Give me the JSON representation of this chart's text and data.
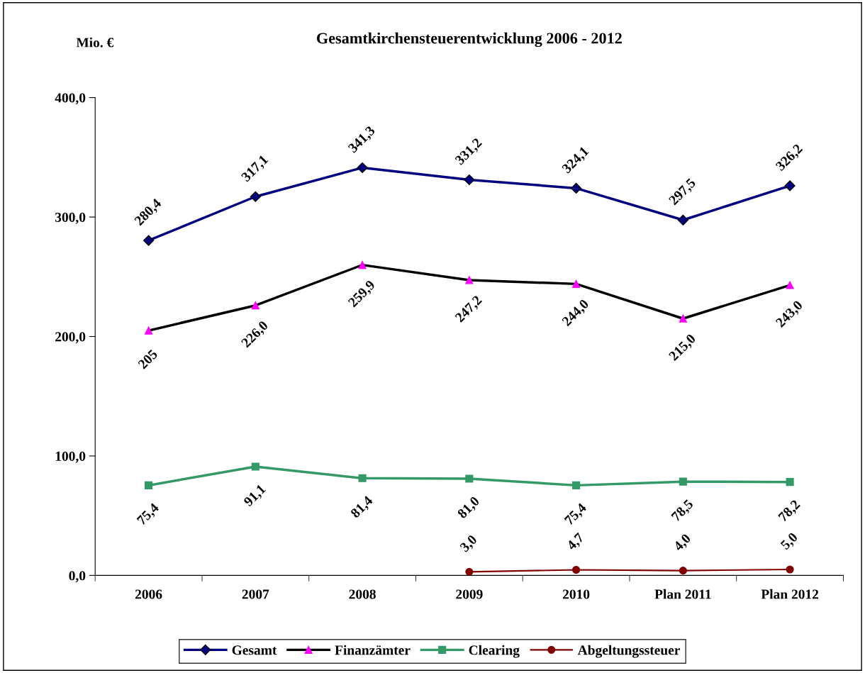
{
  "chart_data": {
    "type": "line",
    "title": "Gesamtkirchensteuerentwicklung 2006 - 2012",
    "ylabel": "Mio. €",
    "categories": [
      "2006",
      "2007",
      "2008",
      "2009",
      "2010",
      "Plan 2011",
      "Plan 2012"
    ],
    "series": [
      {
        "name": "Gesamt",
        "color": "#000080",
        "marker": "diamond",
        "values": [
          280.4,
          317.1,
          341.3,
          331.2,
          324.1,
          297.5,
          326.2
        ],
        "value_labels": [
          "280,4",
          "317,1",
          "341,3",
          "331,2",
          "324,1",
          "297,5",
          "326,2"
        ]
      },
      {
        "name": "Finanzämter",
        "color": "#000000",
        "colors": [
          "#ff00ff",
          "#ff00ff",
          "#ff00ff",
          "#ff00ff",
          "#ff00ff",
          "#ff00ff",
          "#ff00ff"
        ],
        "marker": "triangle",
        "values": [
          205,
          226.0,
          259.9,
          247.2,
          244.0,
          215.0,
          243.0
        ],
        "value_labels": [
          "205",
          "226,0",
          "259,9",
          "247,2",
          "244,0",
          "215,0",
          "243,0"
        ]
      },
      {
        "name": "Clearing",
        "color": "#339966",
        "marker": "square",
        "values": [
          75.4,
          91.1,
          81.4,
          81.0,
          75.4,
          78.5,
          78.2
        ],
        "value_labels": [
          "75,4",
          "91,1",
          "81,4",
          "81,0",
          "75,4",
          "78,5",
          "78,2"
        ]
      },
      {
        "name": "Abgeltungssteuer",
        "color": "#800000",
        "marker": "circle",
        "values": [
          null,
          null,
          null,
          3.0,
          4.7,
          4.0,
          5.0
        ],
        "value_labels": [
          null,
          null,
          null,
          "3,0",
          "4,7",
          "4,0",
          "5,0"
        ]
      }
    ],
    "ylim": [
      0,
      400
    ],
    "yticks": [
      {
        "value": 0,
        "label": "0,0"
      },
      {
        "value": 100,
        "label": "100,0"
      },
      {
        "value": 200,
        "label": "200,0"
      },
      {
        "value": 300,
        "label": "300,0"
      },
      {
        "value": 400,
        "label": "400,0"
      }
    ],
    "grid": false,
    "legend": "bottom",
    "line_style": "solid"
  }
}
